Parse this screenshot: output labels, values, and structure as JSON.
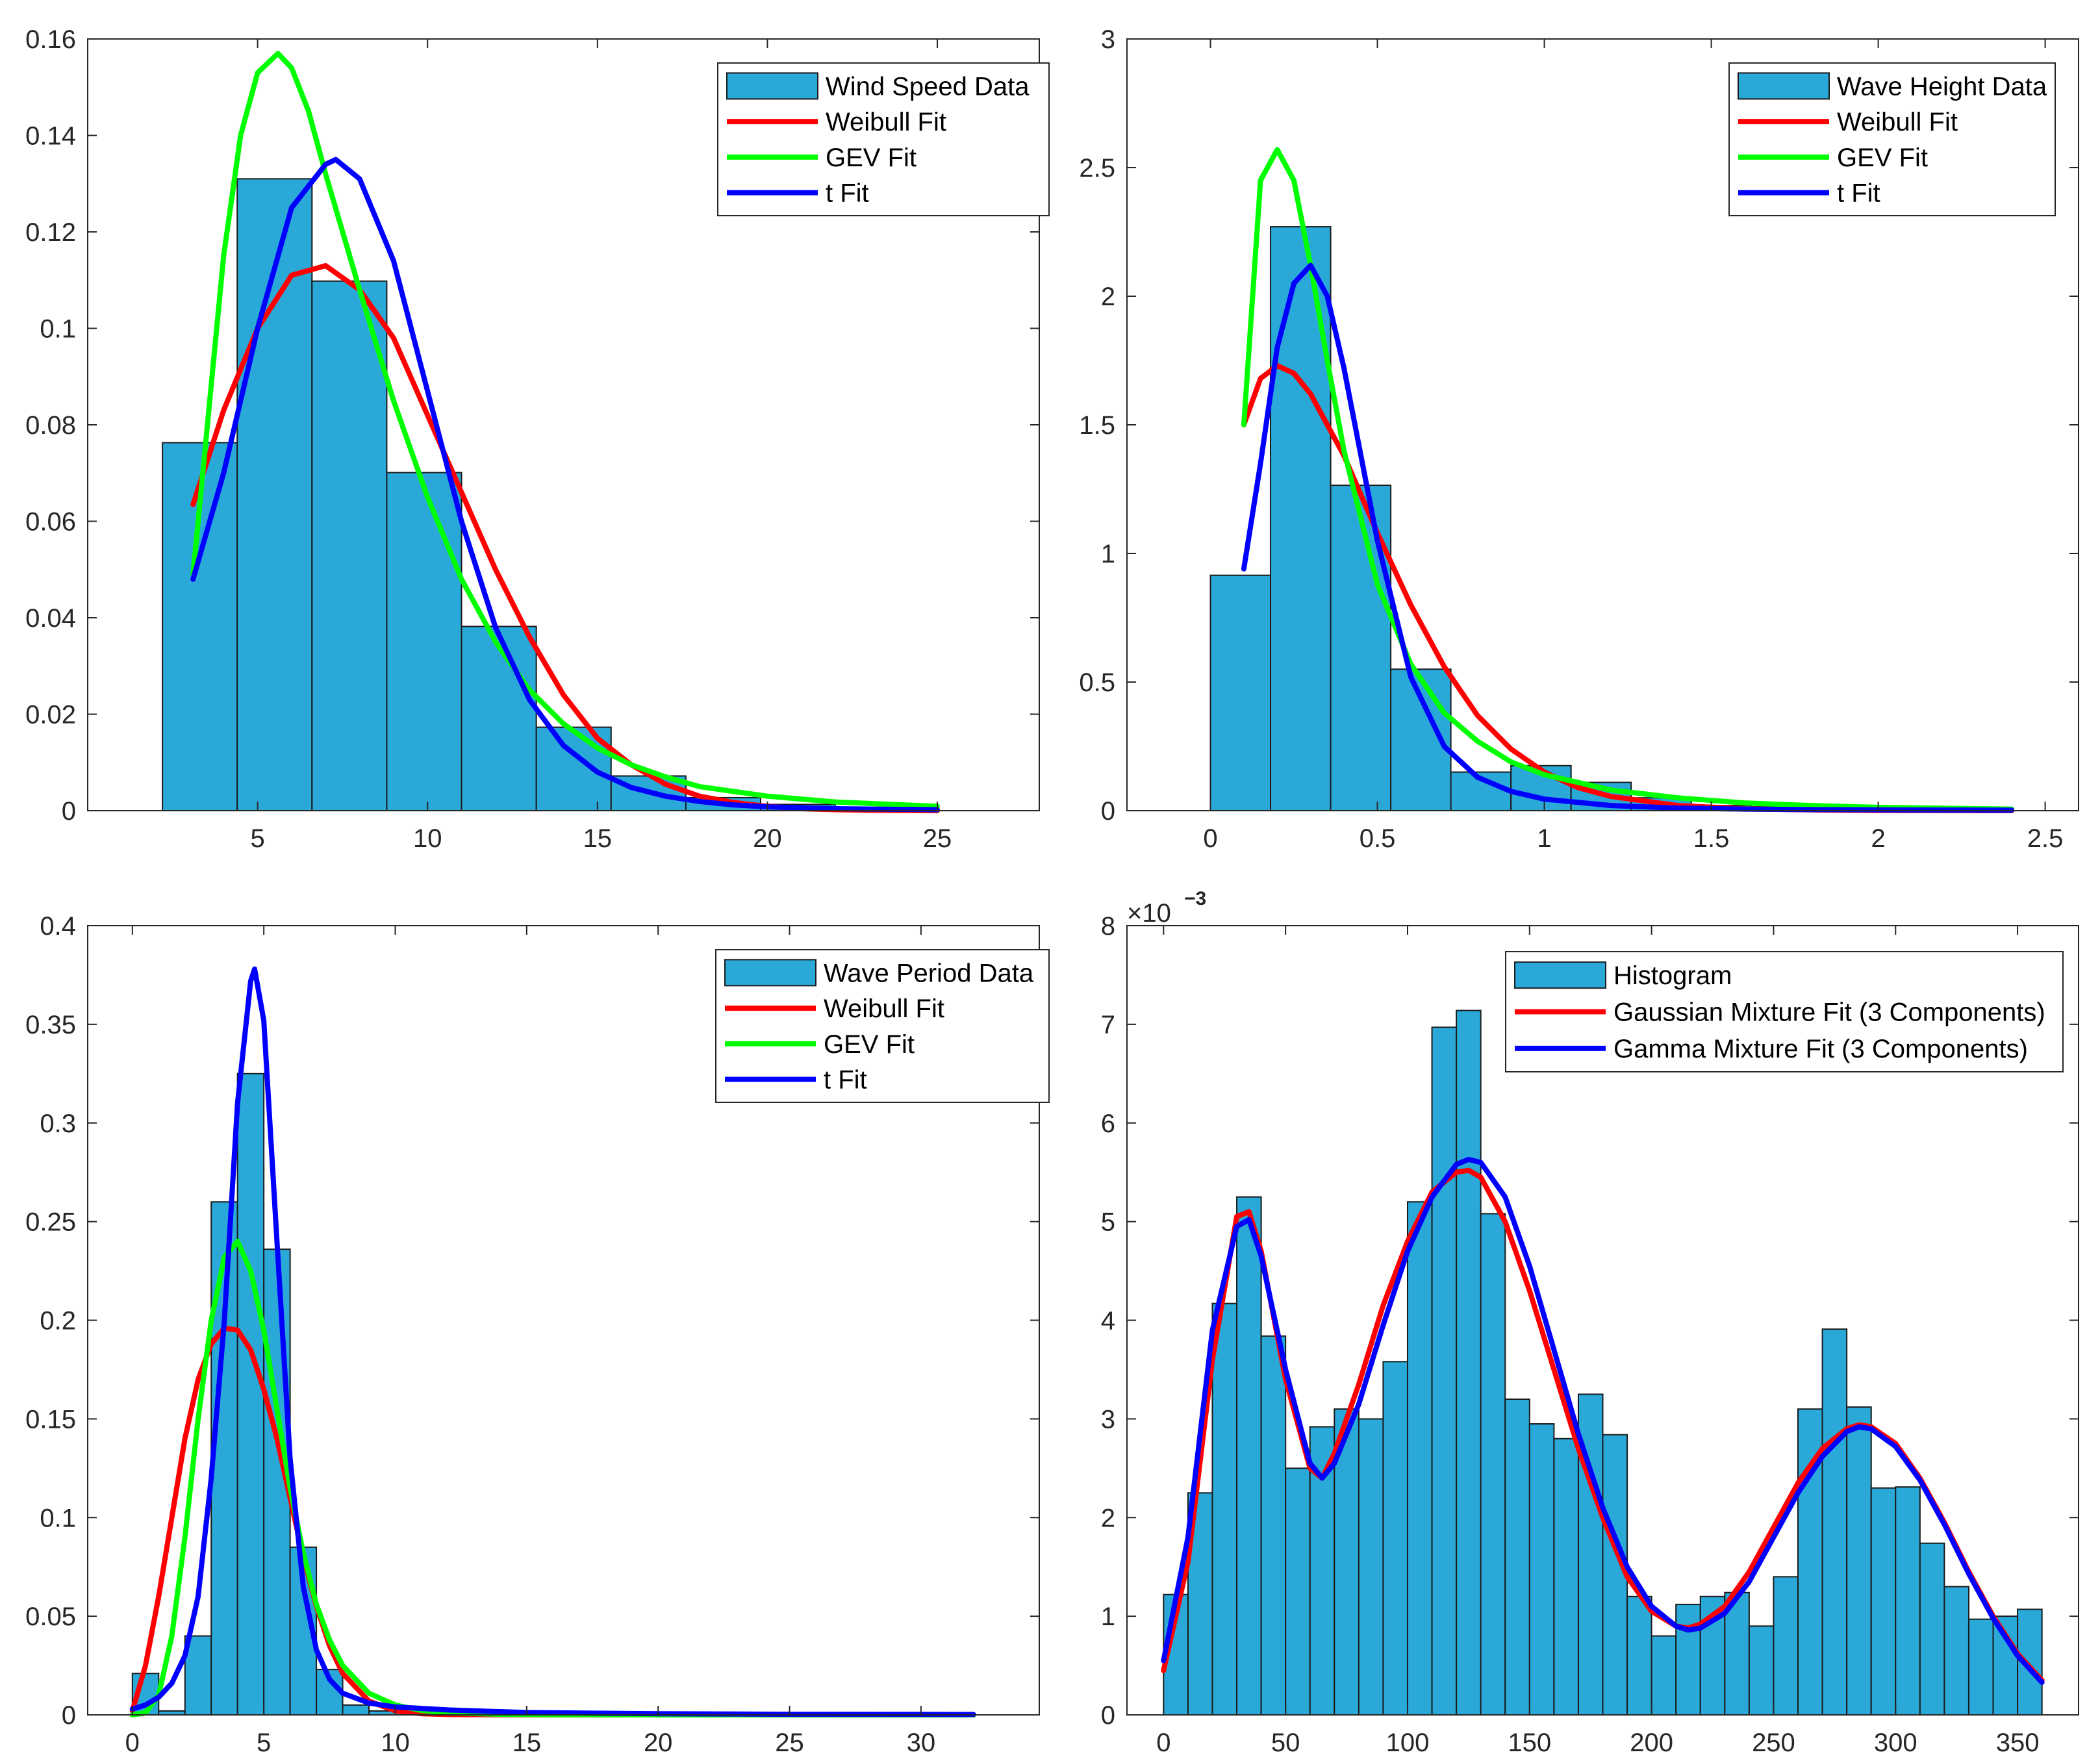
{
  "colors": {
    "bar_fill": "#2aa9d9",
    "bar_edge": "#1a1a1a",
    "weibull": "#ff0000",
    "gev": "#00ff00",
    "t": "#0000ff",
    "gaussian": "#ff0000",
    "gamma": "#0000ff",
    "axis": "#262626"
  },
  "chart_data": [
    {
      "id": "wind",
      "type": "bar",
      "title": "",
      "xlabel": "",
      "ylabel": "",
      "xlim": [
        0,
        28
      ],
      "ylim": [
        0,
        0.16
      ],
      "xticks": [
        5,
        10,
        15,
        20,
        25
      ],
      "xtick_labels": [
        "5",
        "10",
        "15",
        "20",
        "25"
      ],
      "yticks": [
        0,
        0.02,
        0.04,
        0.06,
        0.08,
        0.1,
        0.12,
        0.14,
        0.16
      ],
      "ytick_labels": [
        "0",
        "0.02",
        "0.04",
        "0.06",
        "0.08",
        "0.1",
        "0.12",
        "0.14",
        "0.16"
      ],
      "histogram": {
        "name": "Wind Speed Data",
        "bin_edges": [
          2.2,
          4.4,
          6.6,
          8.8,
          11.0,
          13.2,
          15.4,
          17.6,
          19.8,
          22.0,
          24.2
        ],
        "values": [
          0.0763,
          0.131,
          0.1098,
          0.0701,
          0.0382,
          0.0173,
          0.0072,
          0.0027,
          0.0013,
          0.0005
        ]
      },
      "series": [
        {
          "name": "Weibull Fit",
          "x": [
            3.1,
            4,
            5,
            6,
            7,
            8,
            9,
            10,
            11,
            12,
            13,
            14,
            15,
            16,
            17,
            18,
            19,
            20,
            21,
            22,
            23,
            24,
            25
          ],
          "y": [
            0.0635,
            0.083,
            0.1,
            0.111,
            0.113,
            0.108,
            0.098,
            0.082,
            0.066,
            0.05,
            0.036,
            0.024,
            0.015,
            0.0095,
            0.0055,
            0.003,
            0.0017,
            0.0009,
            0.0004,
            0.0002,
            0.0001,
            5e-05,
            2e-05
          ]
        },
        {
          "name": "GEV Fit",
          "x": [
            3.1,
            4,
            4.5,
            5,
            5.6,
            6,
            6.5,
            7,
            8,
            9,
            10,
            11,
            12,
            13,
            14,
            15,
            16,
            17,
            18,
            20,
            22,
            25
          ],
          "y": [
            0.049,
            0.115,
            0.14,
            0.153,
            0.157,
            0.154,
            0.145,
            0.132,
            0.108,
            0.085,
            0.065,
            0.048,
            0.035,
            0.025,
            0.018,
            0.013,
            0.0095,
            0.007,
            0.005,
            0.003,
            0.0018,
            0.0009
          ]
        },
        {
          "name": "t Fit",
          "x": [
            3.1,
            4,
            5,
            6,
            7,
            7.3,
            8,
            9,
            10,
            11,
            12,
            13,
            14,
            15,
            16,
            17,
            18,
            19,
            20,
            22,
            25
          ],
          "y": [
            0.048,
            0.07,
            0.1,
            0.125,
            0.134,
            0.135,
            0.131,
            0.114,
            0.087,
            0.06,
            0.038,
            0.023,
            0.0135,
            0.008,
            0.0048,
            0.003,
            0.0019,
            0.0012,
            0.0008,
            0.0004,
            0.0002
          ]
        }
      ],
      "legend": {
        "location": "top-right",
        "entries": [
          "Wind Speed Data",
          "Weibull Fit",
          "GEV Fit",
          "t Fit"
        ]
      }
    },
    {
      "id": "waveheight",
      "type": "bar",
      "title": "",
      "xlabel": "",
      "ylabel": "",
      "xlim": [
        -0.25,
        2.6
      ],
      "ylim": [
        0,
        3
      ],
      "xticks": [
        0,
        0.5,
        1,
        1.5,
        2,
        2.5
      ],
      "xtick_labels": [
        "0",
        "0.5",
        "1",
        "1.5",
        "2",
        "2.5"
      ],
      "yticks": [
        0,
        0.5,
        1,
        1.5,
        2,
        2.5,
        3
      ],
      "ytick_labels": [
        "0",
        "0.5",
        "1",
        "1.5",
        "2",
        "2.5",
        "3"
      ],
      "histogram": {
        "name": "Wave Height Data",
        "bin_edges": [
          0.0,
          0.18,
          0.36,
          0.54,
          0.72,
          0.9,
          1.08,
          1.26,
          1.44,
          1.62,
          1.8,
          1.98,
          2.16,
          2.34
        ],
        "values": [
          0.915,
          2.27,
          1.265,
          0.55,
          0.15,
          0.175,
          0.11,
          0.05,
          0.02,
          0.015,
          0.01,
          0.005,
          0.003
        ]
      },
      "series": [
        {
          "name": "Weibull Fit",
          "x": [
            0.1,
            0.15,
            0.2,
            0.25,
            0.3,
            0.4,
            0.5,
            0.6,
            0.7,
            0.8,
            0.9,
            1.0,
            1.1,
            1.2,
            1.4,
            1.6,
            1.8,
            2.0,
            2.2,
            2.4
          ],
          "y": [
            1.5,
            1.68,
            1.73,
            1.7,
            1.62,
            1.38,
            1.08,
            0.8,
            0.56,
            0.37,
            0.24,
            0.15,
            0.09,
            0.055,
            0.02,
            0.007,
            0.003,
            0.001,
            0.0004,
            0.0002
          ]
        },
        {
          "name": "GEV Fit",
          "x": [
            0.1,
            0.15,
            0.2,
            0.25,
            0.3,
            0.35,
            0.4,
            0.5,
            0.6,
            0.7,
            0.8,
            0.9,
            1.0,
            1.2,
            1.4,
            1.6,
            1.8,
            2.0,
            2.4
          ],
          "y": [
            1.5,
            2.45,
            2.57,
            2.45,
            2.12,
            1.75,
            1.4,
            0.88,
            0.57,
            0.38,
            0.27,
            0.19,
            0.14,
            0.08,
            0.05,
            0.03,
            0.02,
            0.013,
            0.006
          ]
        },
        {
          "name": "t Fit",
          "x": [
            0.1,
            0.15,
            0.2,
            0.25,
            0.3,
            0.35,
            0.4,
            0.5,
            0.6,
            0.7,
            0.8,
            0.9,
            1.0,
            1.2,
            1.4,
            1.6,
            1.8,
            2.0,
            2.4
          ],
          "y": [
            0.94,
            1.35,
            1.8,
            2.05,
            2.12,
            2.0,
            1.72,
            1.05,
            0.52,
            0.25,
            0.13,
            0.075,
            0.045,
            0.02,
            0.01,
            0.006,
            0.004,
            0.003,
            0.002
          ]
        }
      ],
      "legend": {
        "location": "top-right",
        "entries": [
          "Wave Height Data",
          "Weibull Fit",
          "GEV Fit",
          "t Fit"
        ]
      }
    },
    {
      "id": "waveperiod",
      "type": "bar",
      "title": "",
      "xlabel": "",
      "ylabel": "",
      "xlim": [
        -1.7,
        34.5
      ],
      "ylim": [
        0,
        0.4
      ],
      "xticks": [
        0,
        5,
        10,
        15,
        20,
        25,
        30
      ],
      "xtick_labels": [
        "0",
        "5",
        "10",
        "15",
        "20",
        "25",
        "30"
      ],
      "yticks": [
        0,
        0.05,
        0.1,
        0.15,
        0.2,
        0.25,
        0.3,
        0.35,
        0.4
      ],
      "ytick_labels": [
        "0",
        "0.05",
        "0.1",
        "0.15",
        "0.2",
        "0.25",
        "0.3",
        "0.35",
        "0.4"
      ],
      "histogram": {
        "name": "Wave Period Data",
        "bin_edges": [
          0,
          1,
          2,
          3,
          4,
          5,
          6,
          7,
          8,
          9,
          10,
          11
        ],
        "values": [
          0.021,
          0.002,
          0.04,
          0.26,
          0.325,
          0.236,
          0.085,
          0.023,
          0.005,
          0.002,
          0.001
        ]
      },
      "series": [
        {
          "name": "Weibull Fit",
          "x": [
            0,
            0.5,
            1,
            1.5,
            2,
            2.5,
            3,
            3.5,
            4,
            4.5,
            5,
            5.5,
            6,
            6.5,
            7,
            7.5,
            8,
            9,
            10,
            11,
            12,
            14,
            16,
            20,
            25,
            32
          ],
          "y": [
            0.002,
            0.025,
            0.06,
            0.1,
            0.14,
            0.17,
            0.188,
            0.196,
            0.195,
            0.185,
            0.165,
            0.14,
            0.11,
            0.08,
            0.055,
            0.035,
            0.021,
            0.007,
            0.002,
            0.0006,
            0.0002,
            2e-05,
            0,
            0,
            0,
            0
          ]
        },
        {
          "name": "GEV Fit",
          "x": [
            0,
            0.5,
            1,
            1.5,
            2,
            2.5,
            3,
            3.5,
            4,
            4.5,
            5,
            5.5,
            6,
            6.5,
            7,
            7.5,
            8,
            9,
            10,
            11,
            12,
            14,
            16,
            20,
            25,
            32
          ],
          "y": [
            0,
            0.001,
            0.01,
            0.04,
            0.09,
            0.15,
            0.2,
            0.232,
            0.24,
            0.225,
            0.195,
            0.155,
            0.115,
            0.082,
            0.056,
            0.038,
            0.025,
            0.011,
            0.005,
            0.0022,
            0.001,
            0.0003,
            0.0001,
            0,
            0,
            0
          ]
        },
        {
          "name": "t Fit",
          "x": [
            0,
            0.5,
            1,
            1.5,
            2,
            2.5,
            3,
            3.5,
            4,
            4.5,
            4.65,
            5,
            5.5,
            6,
            6.5,
            7,
            7.5,
            8,
            9,
            10,
            12,
            15,
            20,
            25,
            32
          ],
          "y": [
            0.003,
            0.005,
            0.009,
            0.016,
            0.03,
            0.06,
            0.12,
            0.2,
            0.31,
            0.372,
            0.378,
            0.352,
            0.24,
            0.13,
            0.065,
            0.033,
            0.018,
            0.011,
            0.006,
            0.004,
            0.0025,
            0.0012,
            0.0006,
            0.0003,
            0.0002
          ]
        }
      ],
      "legend": {
        "location": "top-right",
        "entries": [
          "Wave Period Data",
          "Weibull Fit",
          "GEV Fit",
          "t Fit"
        ]
      }
    },
    {
      "id": "direction",
      "type": "bar",
      "title": "",
      "xlabel": "",
      "ylabel": "",
      "exponent_label": "×10",
      "exponent_value": "−3",
      "xlim": [
        -15,
        375
      ],
      "ylim": [
        0,
        8
      ],
      "xticks": [
        0,
        50,
        100,
        150,
        200,
        250,
        300,
        350
      ],
      "xtick_labels": [
        "0",
        "50",
        "100",
        "150",
        "200",
        "250",
        "300",
        "350"
      ],
      "yticks": [
        0,
        1,
        2,
        3,
        4,
        5,
        6,
        7,
        8
      ],
      "ytick_labels": [
        "0",
        "1",
        "2",
        "3",
        "4",
        "5",
        "6",
        "7",
        "8"
      ],
      "histogram": {
        "name": "Histogram",
        "bin_width": 10,
        "bin_start": 0,
        "values": [
          1.22,
          2.25,
          4.17,
          5.25,
          3.84,
          2.5,
          2.92,
          3.1,
          3.0,
          3.58,
          5.2,
          6.97,
          7.14,
          5.08,
          3.2,
          2.95,
          2.8,
          3.25,
          2.84,
          1.2,
          0.8,
          1.12,
          1.2,
          1.24,
          0.9,
          1.4,
          3.1,
          3.91,
          3.12,
          2.3,
          2.31,
          1.74,
          1.3,
          0.97,
          1.0,
          1.07
        ]
      },
      "series": [
        {
          "name": "Gaussian Mixture Fit (3 Components)",
          "x": [
            0,
            10,
            20,
            30,
            35,
            40,
            50,
            60,
            65,
            70,
            80,
            90,
            100,
            110,
            120,
            125,
            130,
            140,
            150,
            160,
            170,
            180,
            190,
            200,
            210,
            215,
            220,
            230,
            240,
            250,
            260,
            270,
            280,
            285,
            290,
            300,
            310,
            320,
            330,
            340,
            350,
            360
          ],
          "y": [
            0.45,
            1.55,
            3.6,
            5.05,
            5.1,
            4.7,
            3.4,
            2.5,
            2.4,
            2.65,
            3.35,
            4.15,
            4.8,
            5.3,
            5.5,
            5.52,
            5.45,
            5.0,
            4.3,
            3.5,
            2.7,
            2.0,
            1.4,
            1.05,
            0.9,
            0.88,
            0.92,
            1.1,
            1.45,
            1.9,
            2.35,
            2.7,
            2.9,
            2.94,
            2.92,
            2.75,
            2.4,
            1.95,
            1.45,
            1.0,
            0.62,
            0.35
          ]
        },
        {
          "name": "Gamma Mixture Fit (3 Components)",
          "x": [
            0,
            10,
            20,
            30,
            35,
            40,
            50,
            60,
            65,
            70,
            80,
            90,
            100,
            110,
            120,
            125,
            130,
            140,
            150,
            160,
            170,
            180,
            190,
            200,
            210,
            215,
            220,
            230,
            240,
            250,
            260,
            270,
            280,
            285,
            290,
            300,
            310,
            320,
            330,
            340,
            350,
            360
          ],
          "y": [
            0.55,
            1.8,
            3.9,
            4.95,
            5.02,
            4.65,
            3.5,
            2.55,
            2.4,
            2.55,
            3.15,
            3.95,
            4.7,
            5.25,
            5.58,
            5.63,
            5.6,
            5.25,
            4.55,
            3.7,
            2.85,
            2.1,
            1.5,
            1.1,
            0.9,
            0.86,
            0.88,
            1.03,
            1.35,
            1.8,
            2.25,
            2.62,
            2.87,
            2.92,
            2.9,
            2.72,
            2.38,
            1.93,
            1.43,
            0.98,
            0.6,
            0.33
          ]
        }
      ],
      "legend": {
        "location": "top-right",
        "entries": [
          "Histogram",
          "Gaussian Mixture Fit (3 Components)",
          "Gamma Mixture Fit (3 Components)"
        ]
      }
    }
  ]
}
